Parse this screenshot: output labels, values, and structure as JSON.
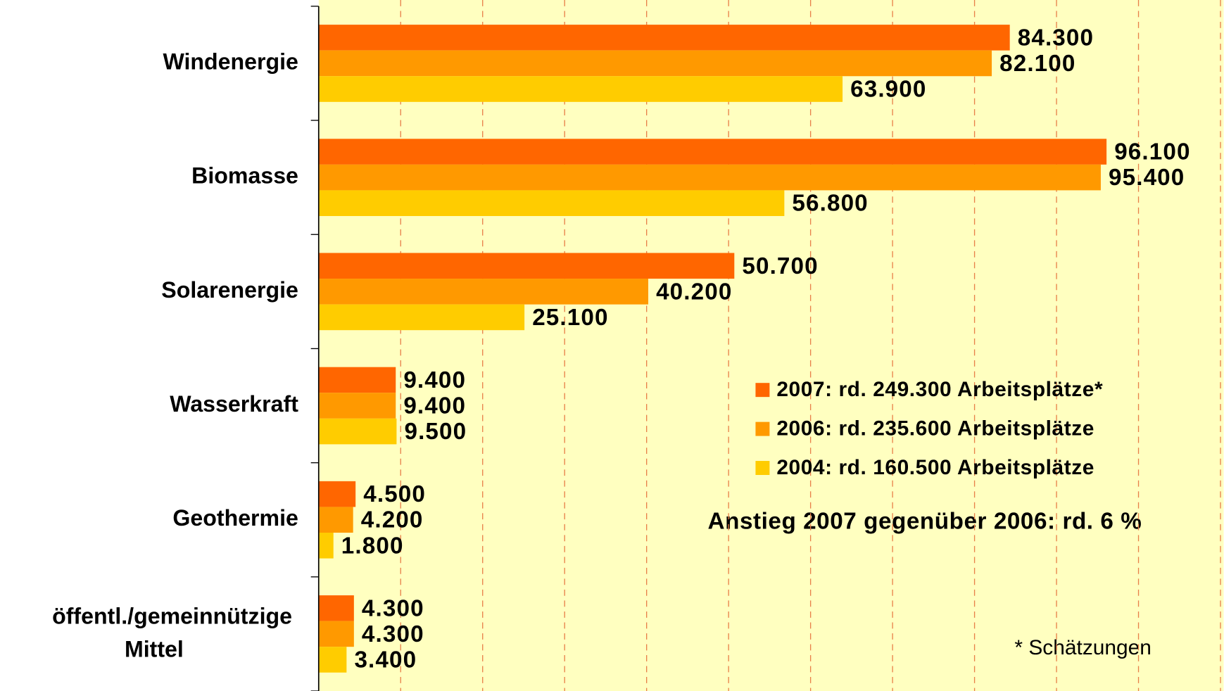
{
  "chart_data": {
    "type": "barh",
    "categories": [
      "Windenergie",
      "Biomasse",
      "Solarenergie",
      "Wasserkraft",
      "Geothermie",
      "öffentl./gemeinnützige Mittel"
    ],
    "series": [
      {
        "name": "2007: rd. 249.300 Arbeitsplätze*",
        "color": "#ff6600",
        "values": [
          84300,
          96100,
          50700,
          9400,
          4500,
          4300
        ],
        "value_labels": [
          "84.300",
          "96.100",
          "50.700",
          "9.400",
          "4.500",
          "4.300"
        ]
      },
      {
        "name": "2006: rd. 235.600 Arbeitsplätze",
        "color": "#ff9900",
        "values": [
          82100,
          95400,
          40200,
          9400,
          4200,
          4300
        ],
        "value_labels": [
          "82.100",
          "95.400",
          "40.200",
          "9.400",
          "4.200",
          "4.300"
        ]
      },
      {
        "name": "2004: rd. 160.500 Arbeitsplätze",
        "color": "#ffcc00",
        "values": [
          63900,
          56800,
          25100,
          9500,
          1800,
          3400
        ],
        "value_labels": [
          "63.900",
          "56.800",
          "25.100",
          "9.500",
          "1.800",
          "3.400"
        ]
      }
    ],
    "xlim": [
      0,
      110000
    ],
    "xticks": [
      10000,
      20000,
      30000,
      40000,
      50000,
      60000,
      70000,
      80000,
      90000,
      100000,
      110000
    ],
    "grid": true,
    "annotations": [
      "Anstieg 2007 gegenüber 2006: rd. 6 %",
      "* Schätzungen"
    ]
  }
}
